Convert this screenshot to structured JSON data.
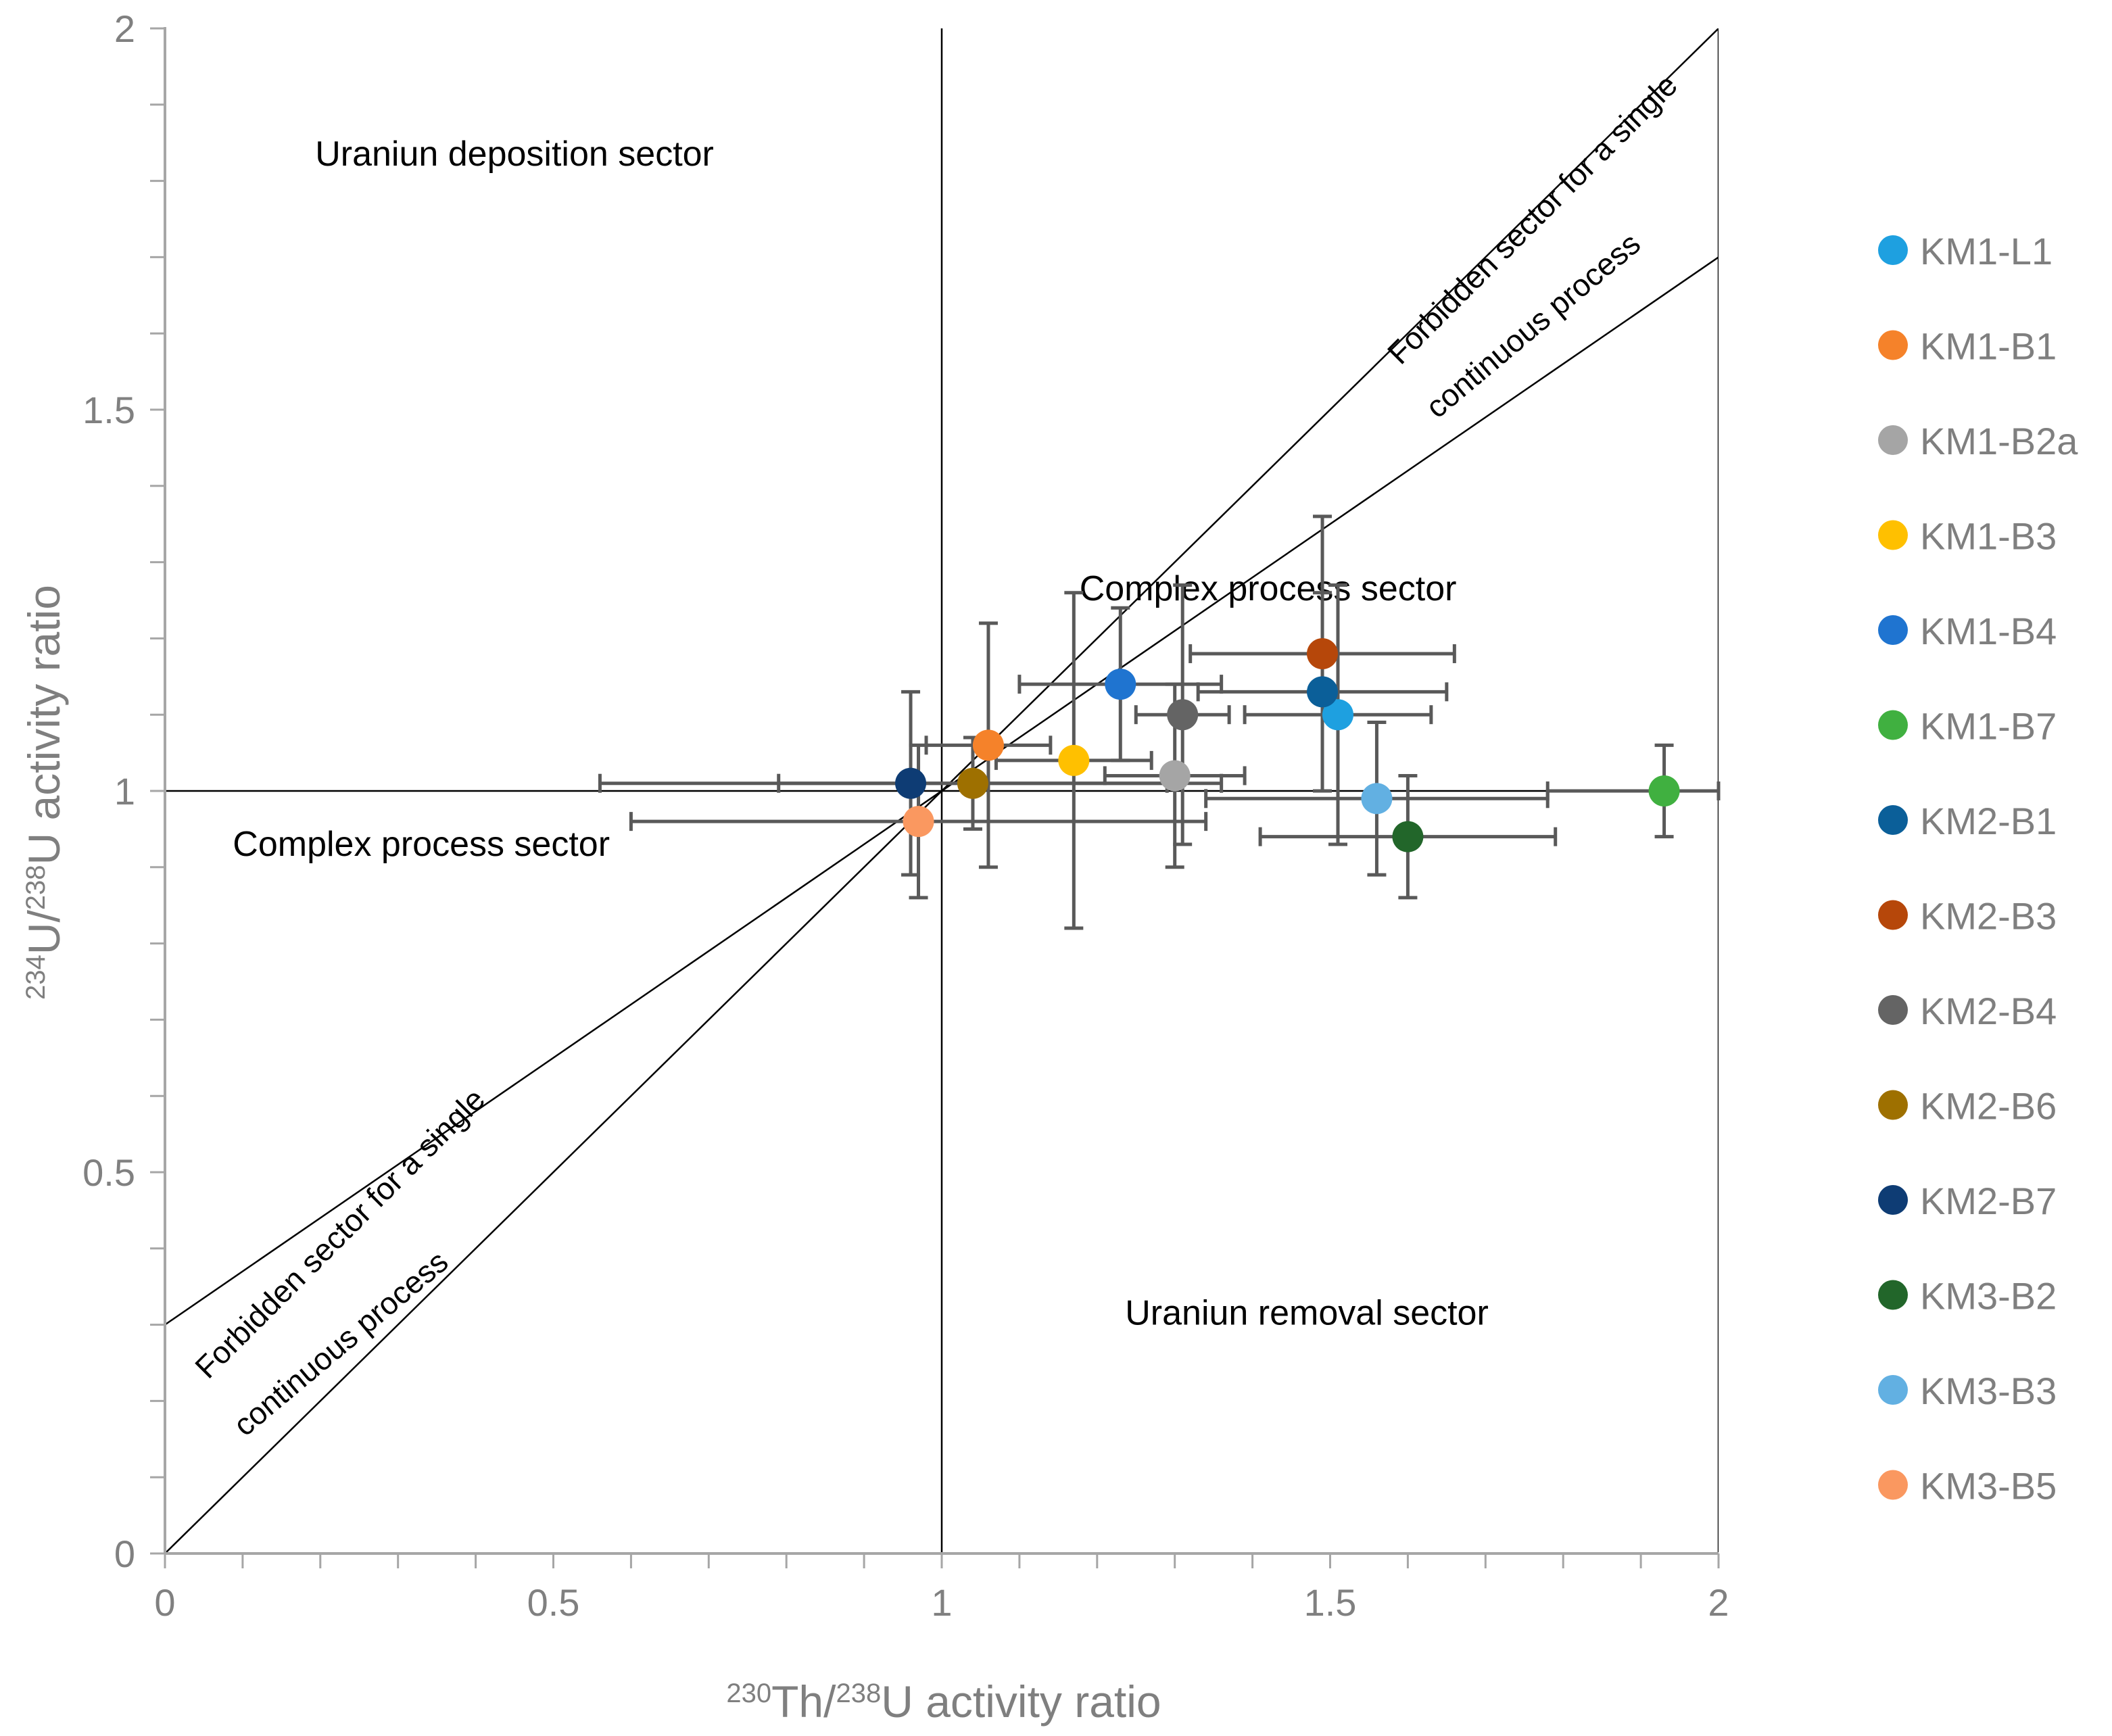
{
  "chart_data": {
    "type": "scatter",
    "title": "",
    "xlabel": {
      "sup1": "230",
      "base1": "Th/",
      "sup2": "238",
      "base2": "U activity ratio"
    },
    "ylabel": {
      "sup1": "234",
      "base1": "U/",
      "sup2": "238",
      "base2": "U activity ratio"
    },
    "xlim": [
      0,
      2
    ],
    "ylim": [
      0,
      2
    ],
    "x_ticks": [
      0,
      0.5,
      1,
      1.5,
      2
    ],
    "y_ticks": [
      0,
      0.5,
      1,
      1.5,
      2
    ],
    "x_tick_labels": [
      "0",
      "0.5",
      "1",
      "1.5",
      "2"
    ],
    "y_tick_labels": [
      "0",
      "0.5",
      "1",
      "1.5",
      "2"
    ],
    "legend_position": "right",
    "reference_lines": [
      {
        "name": "vertical-1",
        "points": [
          [
            1,
            0
          ],
          [
            1,
            2
          ]
        ]
      },
      {
        "name": "horizontal-1",
        "points": [
          [
            0,
            1
          ],
          [
            2,
            1
          ]
        ]
      },
      {
        "name": "equiline",
        "points": [
          [
            0,
            0
          ],
          [
            2,
            2
          ]
        ]
      },
      {
        "name": "slope-0.7-line",
        "points": [
          [
            0,
            0.3
          ],
          [
            2,
            1.7
          ]
        ]
      }
    ],
    "sector_labels": [
      {
        "text": "Uraniun deposition sector",
        "x": 0.45,
        "y": 1.82,
        "rotate": 0,
        "cls": "sector-label"
      },
      {
        "text": "Complex process sector",
        "x": 1.42,
        "y": 1.25,
        "rotate": 0,
        "cls": "sector-label"
      },
      {
        "text": "Complex process sector",
        "x": 0.33,
        "y": 0.915,
        "rotate": 0,
        "cls": "sector-label"
      },
      {
        "text": "Uraniun removal sector",
        "x": 1.47,
        "y": 0.3,
        "rotate": 0,
        "cls": "sector-label"
      },
      {
        "text": "Forbidden sector for a single",
        "x": 1.77,
        "y": 1.74,
        "rotate": -45,
        "cls": "rot-label"
      },
      {
        "text": "continuous process",
        "x": 1.77,
        "y": 1.6,
        "rotate": -40,
        "cls": "rot-label"
      },
      {
        "text": "Forbidden sector for a single",
        "x": 0.235,
        "y": 0.41,
        "rotate": -45,
        "cls": "rot-label"
      },
      {
        "text": "continuous process",
        "x": 0.235,
        "y": 0.265,
        "rotate": -40,
        "cls": "rot-label"
      }
    ],
    "series": [
      {
        "name": "KM1-L1",
        "color": "#1ea0e0",
        "x": 1.51,
        "y": 1.1,
        "xerr": 0.12,
        "yerr": 0.17
      },
      {
        "name": "KM1-B1",
        "color": "#f5822a",
        "x": 1.06,
        "y": 1.06,
        "xerr": 0.08,
        "yerr": 0.16
      },
      {
        "name": "KM1-B2a",
        "color": "#a5a5a5",
        "x": 1.3,
        "y": 1.02,
        "xerr": 0.09,
        "yerr": 0.12
      },
      {
        "name": "KM1-B3",
        "color": "#ffc000",
        "x": 1.17,
        "y": 1.04,
        "xerr": 0.1,
        "yerr": 0.22
      },
      {
        "name": "KM1-B4",
        "color": "#1f74d0",
        "x": 1.23,
        "y": 1.14,
        "xerr": 0.13,
        "yerr": 0.1
      },
      {
        "name": "KM1-B7",
        "color": "#40b040",
        "x": 1.93,
        "y": 1.0,
        "xerr": 0.15,
        "yerr": 0.06
      },
      {
        "name": "KM2-B1",
        "color": "#0b5f99",
        "x": 1.49,
        "y": 1.13,
        "xerr": 0.16,
        "yerr": 0.13
      },
      {
        "name": "KM2-B3",
        "color": "#b6470a",
        "x": 1.49,
        "y": 1.18,
        "xerr": 0.17,
        "yerr": 0.18
      },
      {
        "name": "KM2-B4",
        "color": "#646464",
        "x": 1.31,
        "y": 1.1,
        "xerr": 0.06,
        "yerr": 0.17
      },
      {
        "name": "KM2-B6",
        "color": "#9e7000",
        "x": 1.04,
        "y": 1.01,
        "xerr": 0.25,
        "yerr": 0.06
      },
      {
        "name": "KM2-B7",
        "color": "#0e3c74",
        "x": 0.96,
        "y": 1.01,
        "xerr": 0.4,
        "yerr": 0.12
      },
      {
        "name": "KM3-B2",
        "color": "#22662a",
        "x": 1.6,
        "y": 0.94,
        "xerr": 0.19,
        "yerr": 0.08
      },
      {
        "name": "KM3-B3",
        "color": "#62b0e2",
        "x": 1.56,
        "y": 0.99,
        "xerr": 0.22,
        "yerr": 0.1
      },
      {
        "name": "KM3-B5",
        "color": "#fa9860",
        "x": 0.97,
        "y": 0.96,
        "xerr": 0.37,
        "yerr": 0.1
      }
    ]
  }
}
